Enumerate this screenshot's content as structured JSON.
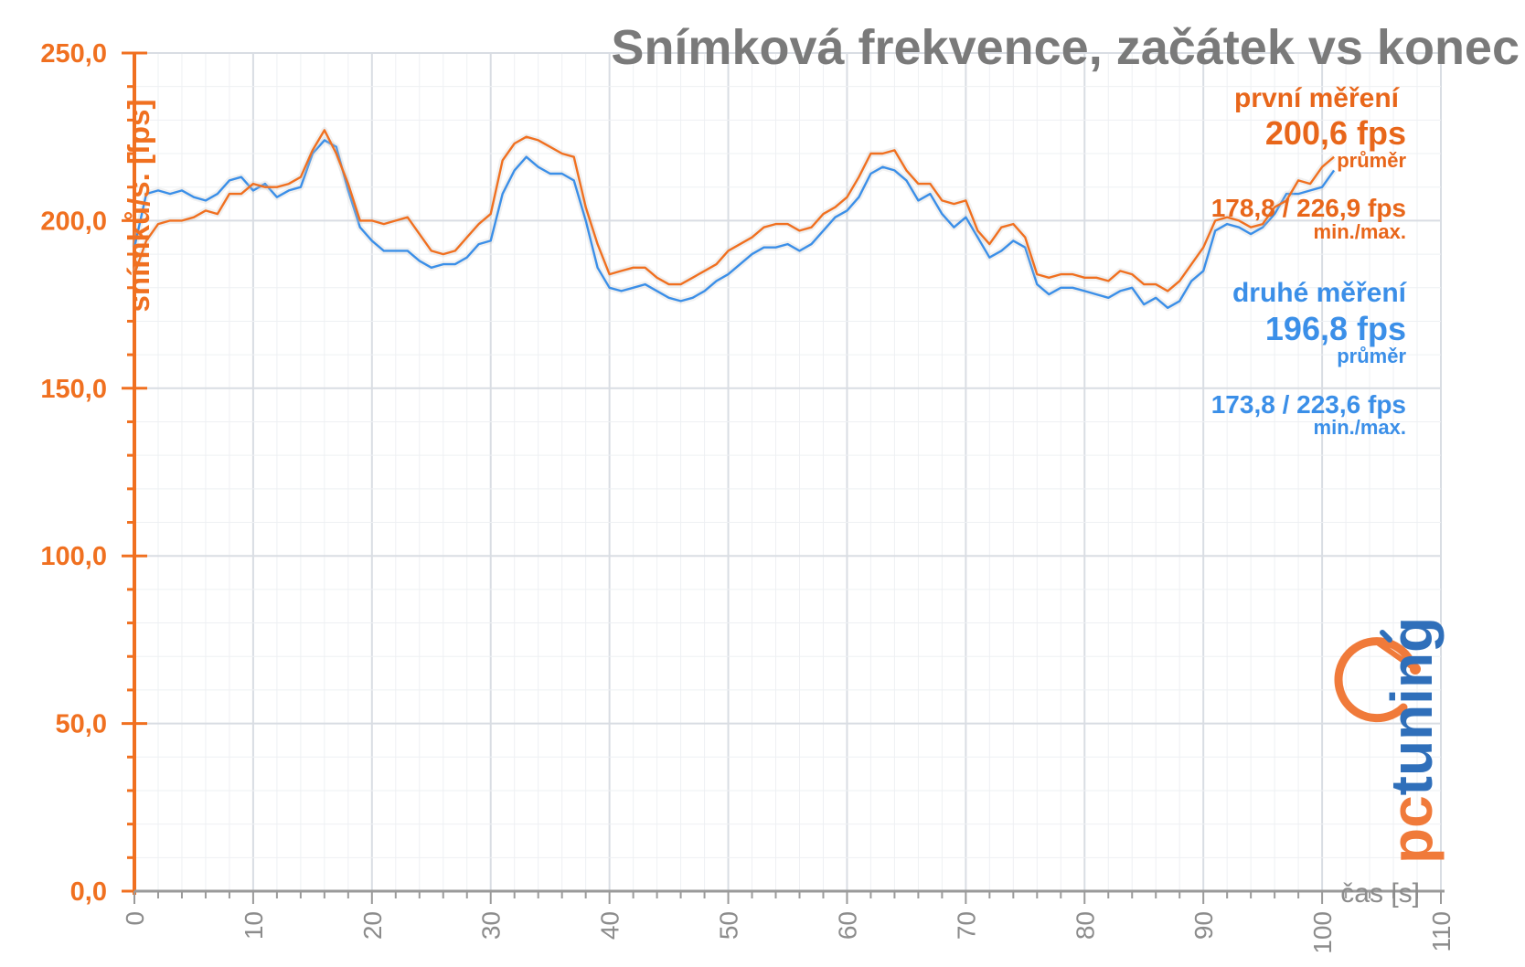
{
  "chart_data": {
    "type": "line",
    "title": "Snímková frekvence, začátek vs konec",
    "ylabel": "snímků/s. [fps]",
    "xlabel": "čas [s]",
    "xlim": [
      0,
      110
    ],
    "ylim": [
      0,
      250
    ],
    "x_ticks": [
      0,
      10,
      20,
      30,
      40,
      50,
      60,
      70,
      80,
      90,
      100,
      110
    ],
    "y_ticks": [
      "0,0",
      "50,0",
      "100,0",
      "150,0",
      "200,0",
      "250,0"
    ],
    "grid": true,
    "series": [
      {
        "name": "první měření",
        "color": "#f07020",
        "x": [
          0,
          1,
          2,
          3,
          4,
          5,
          6,
          7,
          8,
          9,
          10,
          11,
          12,
          13,
          14,
          15,
          16,
          17,
          18,
          19,
          20,
          21,
          22,
          23,
          24,
          25,
          26,
          27,
          28,
          29,
          30,
          31,
          32,
          33,
          34,
          35,
          36,
          37,
          38,
          39,
          40,
          41,
          42,
          43,
          44,
          45,
          46,
          47,
          48,
          49,
          50,
          51,
          52,
          53,
          54,
          55,
          56,
          57,
          58,
          59,
          60,
          61,
          62,
          63,
          64,
          65,
          66,
          67,
          68,
          69,
          70,
          71,
          72,
          73,
          74,
          75,
          76,
          77,
          78,
          79,
          80,
          81,
          82,
          83,
          84,
          85,
          86,
          87,
          88,
          89,
          90,
          91,
          92,
          93,
          94,
          95,
          96,
          97,
          98,
          99,
          100,
          101
        ],
        "y": [
          184,
          194,
          199,
          200,
          200,
          201,
          203,
          202,
          208,
          208,
          211,
          210,
          210,
          211,
          213,
          221,
          227,
          220,
          211,
          200,
          200,
          199,
          200,
          201,
          196,
          191,
          190,
          191,
          195,
          199,
          202,
          218,
          223,
          225,
          224,
          222,
          220,
          219,
          204,
          193,
          184,
          185,
          186,
          186,
          183,
          181,
          181,
          183,
          185,
          187,
          191,
          193,
          195,
          198,
          199,
          199,
          197,
          198,
          202,
          204,
          207,
          213,
          220,
          220,
          221,
          215,
          211,
          211,
          206,
          205,
          206,
          197,
          193,
          198,
          199,
          195,
          184,
          183,
          184,
          184,
          183,
          183,
          182,
          185,
          184,
          181,
          181,
          179,
          182,
          187,
          192,
          200,
          201,
          200,
          198,
          199,
          204,
          206,
          212,
          211,
          216,
          219
        ]
      },
      {
        "name": "druhé měření",
        "color": "#3b8fe8",
        "x": [
          0,
          1,
          2,
          3,
          4,
          5,
          6,
          7,
          8,
          9,
          10,
          11,
          12,
          13,
          14,
          15,
          16,
          17,
          18,
          19,
          20,
          21,
          22,
          23,
          24,
          25,
          26,
          27,
          28,
          29,
          30,
          31,
          32,
          33,
          34,
          35,
          36,
          37,
          38,
          39,
          40,
          41,
          42,
          43,
          44,
          45,
          46,
          47,
          48,
          49,
          50,
          51,
          52,
          53,
          54,
          55,
          56,
          57,
          58,
          59,
          60,
          61,
          62,
          63,
          64,
          65,
          66,
          67,
          68,
          69,
          70,
          71,
          72,
          73,
          74,
          75,
          76,
          77,
          78,
          79,
          80,
          81,
          82,
          83,
          84,
          85,
          86,
          87,
          88,
          89,
          90,
          91,
          92,
          93,
          94,
          95,
          96,
          97,
          98,
          99,
          100,
          101
        ],
        "y": [
          192,
          208,
          209,
          208,
          209,
          207,
          206,
          208,
          212,
          213,
          209,
          211,
          207,
          209,
          210,
          220,
          224,
          222,
          209,
          198,
          194,
          191,
          191,
          191,
          188,
          186,
          187,
          187,
          189,
          193,
          194,
          208,
          215,
          219,
          216,
          214,
          214,
          212,
          200,
          186,
          180,
          179,
          180,
          181,
          179,
          177,
          176,
          177,
          179,
          182,
          184,
          187,
          190,
          192,
          192,
          193,
          191,
          193,
          197,
          201,
          203,
          207,
          214,
          216,
          215,
          212,
          206,
          208,
          202,
          198,
          201,
          195,
          189,
          191,
          194,
          192,
          181,
          178,
          180,
          180,
          179,
          178,
          177,
          179,
          180,
          175,
          177,
          174,
          176,
          182,
          185,
          197,
          199,
          198,
          196,
          198,
          202,
          208,
          208,
          209,
          210,
          215
        ]
      }
    ],
    "annotations": {
      "first": {
        "name": "první měření",
        "avg": "200,6 fps",
        "avg_label": "průměr",
        "minmax": "178,8 / 226,9 fps",
        "minmax_label": "min./max."
      },
      "second": {
        "name": "druhé měření",
        "avg": "196,8 fps",
        "avg_label": "průměr",
        "minmax": "173,8 / 223,6 fps",
        "minmax_label": "min./max."
      }
    },
    "legend_placement": "top-right"
  },
  "logo": {
    "text": "pctuning",
    "colors": {
      "orange": "#f07a3a",
      "blue": "#2f6fba"
    }
  }
}
